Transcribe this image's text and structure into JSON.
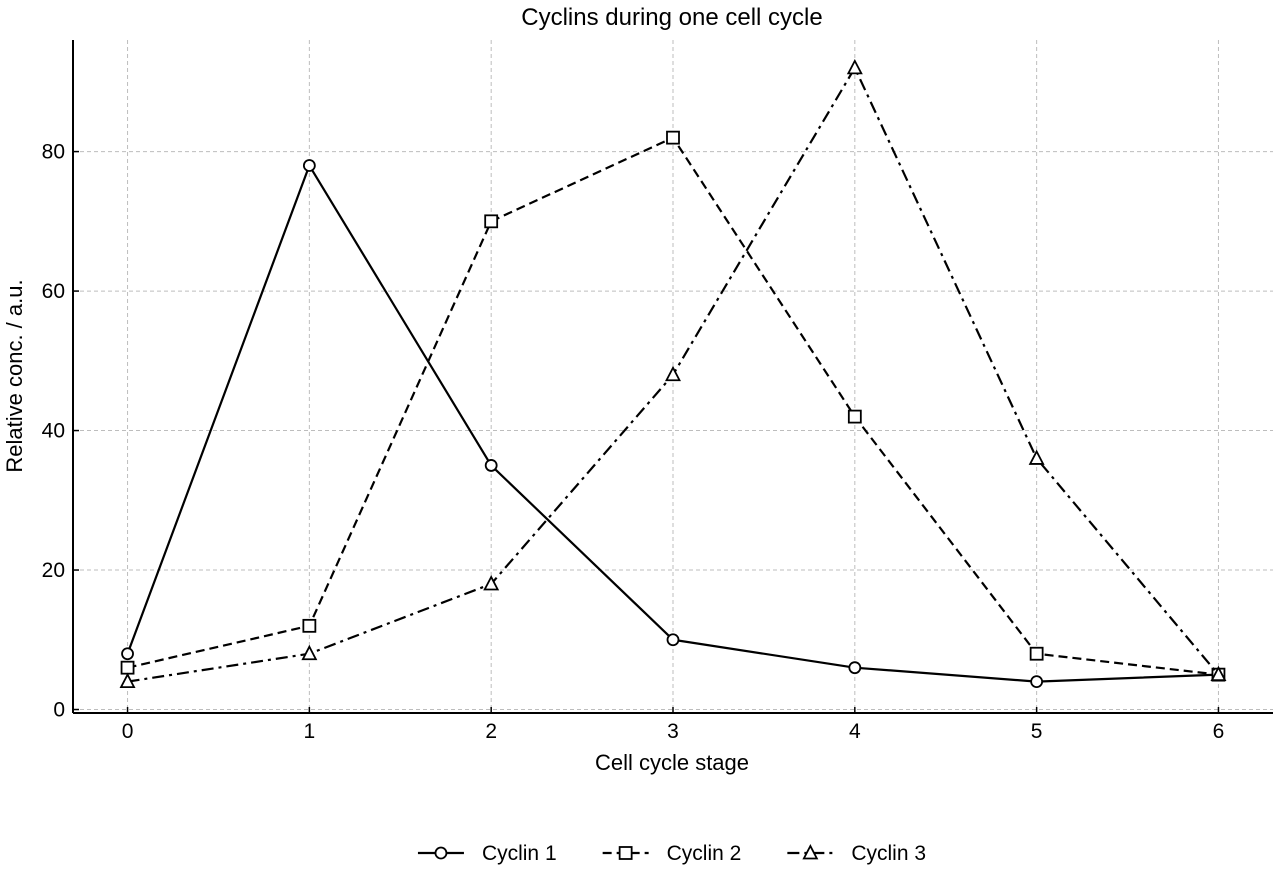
{
  "chart_data": {
    "type": "line",
    "title": "Cyclins during one cell cycle",
    "xlabel": "Cell cycle stage",
    "ylabel": "Relative conc. / a.u.",
    "x": [
      0,
      1,
      2,
      3,
      4,
      5,
      6
    ],
    "xlim": [
      -0.3,
      6.3
    ],
    "ylim": [
      -0.5,
      96
    ],
    "xticks": [
      0,
      1,
      2,
      3,
      4,
      5,
      6
    ],
    "yticks": [
      0,
      20,
      40,
      60,
      80
    ],
    "grid": true,
    "legend_position": "bottom-center",
    "series": [
      {
        "name": "Cyclin 1",
        "values": [
          8,
          78,
          35,
          10,
          6,
          4,
          5
        ],
        "marker": "circle",
        "line_style": "solid",
        "color": "#000000"
      },
      {
        "name": "Cyclin 2",
        "values": [
          6,
          12,
          70,
          82,
          42,
          8,
          5
        ],
        "marker": "square",
        "line_style": "dashed",
        "color": "#000000"
      },
      {
        "name": "Cyclin 3",
        "values": [
          4,
          8,
          18,
          48,
          92,
          36,
          5
        ],
        "marker": "triangle",
        "line_style": "dashdot",
        "color": "#000000"
      }
    ]
  }
}
